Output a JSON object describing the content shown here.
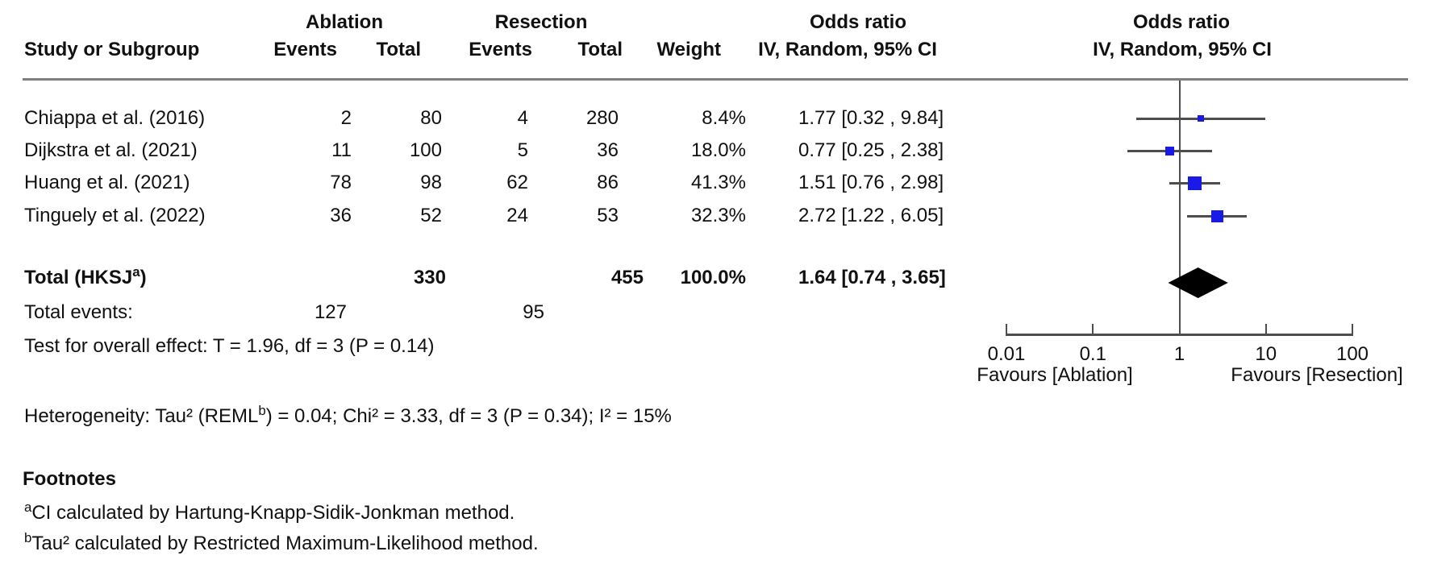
{
  "table": {
    "group1_header": "Ablation",
    "group2_header": "Resection",
    "or_col_header_line1": "Odds ratio",
    "or_col_header_line2": "IV, Random, 95% CI",
    "plot_header_line1": "Odds ratio",
    "plot_header_line2": "IV, Random, 95% CI",
    "col_study": "Study or Subgroup",
    "col_events1": "Events",
    "col_total1": "Total",
    "col_events2": "Events",
    "col_total2": "Total",
    "col_weight": "Weight",
    "rows": [
      {
        "study": "Chiappa et al. (2016)",
        "e1": "2",
        "t1": "80",
        "e2": "4",
        "t2": "280",
        "weight": "8.4%",
        "or_ci": "1.77 [0.32 , 9.84]"
      },
      {
        "study": "Dijkstra et al. (2021)",
        "e1": "11",
        "t1": "100",
        "e2": "5",
        "t2": "36",
        "weight": "18.0%",
        "or_ci": "0.77 [0.25 , 2.38]"
      },
      {
        "study": "Huang et al. (2021)",
        "e1": "78",
        "t1": "98",
        "e2": "62",
        "t2": "86",
        "weight": "41.3%",
        "or_ci": "1.51 [0.76 , 2.98]"
      },
      {
        "study": "Tinguely et al. (2022)",
        "e1": "36",
        "t1": "52",
        "e2": "24",
        "t2": "53",
        "weight": "32.3%",
        "or_ci": "2.72 [1.22 , 6.05]"
      }
    ],
    "total": {
      "label_pre": "Total (HKSJ",
      "label_sup": "a",
      "label_post": ")",
      "t1": "330",
      "t2": "455",
      "weight": "100.0%",
      "or_ci": "1.64 [0.74 , 3.65]"
    },
    "total_events": {
      "label": "Total events:",
      "e1": "127",
      "e2": "95"
    },
    "overall_effect": "Test for overall effect: T = 1.96, df = 3 (P = 0.14)",
    "heterogeneity": {
      "pre": "Heterogeneity: Tau² (REML",
      "sup": "b",
      "post": ") = 0.04; Chi² = 3.33, df = 3 (P = 0.34); I² = 15%"
    }
  },
  "footnotes": {
    "heading": "Footnotes",
    "items": [
      {
        "sup": "a",
        "text": "CI calculated by Hartung-Knapp-Sidik-Jonkman method."
      },
      {
        "sup": "b",
        "text": "Tau² calculated by Restricted Maximum-Likelihood method."
      }
    ]
  },
  "chart_data": {
    "type": "scatter",
    "subtype": "forest_plot",
    "x_scale": "log10",
    "x_range": [
      0.01,
      100
    ],
    "axis_ticks": [
      0.01,
      0.1,
      1,
      10,
      100
    ],
    "axis_tick_labels": [
      "0.01",
      "0.1",
      "1",
      "10",
      "100"
    ],
    "null_value": 1,
    "favours_left": "Favours [Ablation]",
    "favours_right": "Favours [Resection]",
    "effect_measure": "Odds ratio, IV, Random, 95% CI",
    "studies": [
      {
        "name": "Chiappa et al. (2016)",
        "or": 1.77,
        "ci_low": 0.32,
        "ci_high": 9.84,
        "weight_pct": 8.4
      },
      {
        "name": "Dijkstra et al. (2021)",
        "or": 0.77,
        "ci_low": 0.25,
        "ci_high": 2.38,
        "weight_pct": 18.0
      },
      {
        "name": "Huang et al. (2021)",
        "or": 1.51,
        "ci_low": 0.76,
        "ci_high": 2.98,
        "weight_pct": 41.3
      },
      {
        "name": "Tinguely et al. (2022)",
        "or": 2.72,
        "ci_low": 1.22,
        "ci_high": 6.05,
        "weight_pct": 32.3
      }
    ],
    "total": {
      "or": 1.64,
      "ci_low": 0.74,
      "ci_high": 3.65,
      "weight_pct": 100.0
    },
    "colors": {
      "square": "#1a1ae6",
      "diamond": "#000000",
      "line": "#4d4d4d",
      "separator": "#7f7f7f"
    }
  }
}
